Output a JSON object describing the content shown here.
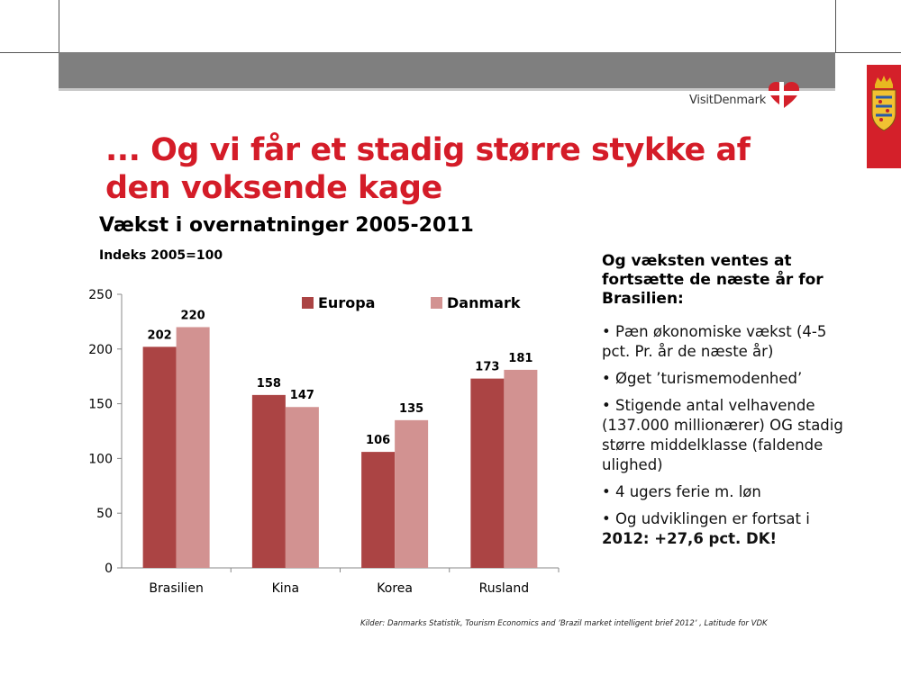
{
  "header": {
    "logo_text": "VisitDenmark"
  },
  "slide_title": "... Og vi får et stadig større stykke af den voksende kage",
  "chart_data": {
    "type": "bar",
    "title": "Vækst i overnatninger 2005-2011",
    "subtitle": "Indeks 2005=100",
    "categories": [
      "Brasilien",
      "Kina",
      "Korea",
      "Rusland"
    ],
    "series": [
      {
        "name": "Europa",
        "values": [
          202,
          158,
          106,
          173
        ],
        "color": "#ab4444"
      },
      {
        "name": "Danmark",
        "values": [
          220,
          147,
          135,
          181
        ],
        "color": "#d29291"
      }
    ],
    "ylim": [
      0,
      250
    ],
    "yticks": [
      0,
      50,
      100,
      150,
      200,
      250
    ],
    "xlabel": "",
    "ylabel": "",
    "grid": false,
    "legend": "top-center"
  },
  "side_panel": {
    "heading": "Og væksten ventes at fortsætte de næste år for Brasilien:",
    "bullets": [
      "Pæn økonomiske vækst (4-5 pct. Pr. år de næste år)",
      "Øget ’turismemodenhed’",
      "Stigende antal velhavende (137.000 millionærer) OG stadig større middelklasse (faldende ulighed)",
      "4 ugers ferie m. løn"
    ],
    "last_bullet_prefix": "Og udviklingen er fortsat i",
    "last_bullet_bold": "2012: +27,6 pct. DK!"
  },
  "source": "Kilder: Danmarks Statistik, Tourism Economics and ’Brazil market intelligent brief 2012’ , Latitude for VDK"
}
